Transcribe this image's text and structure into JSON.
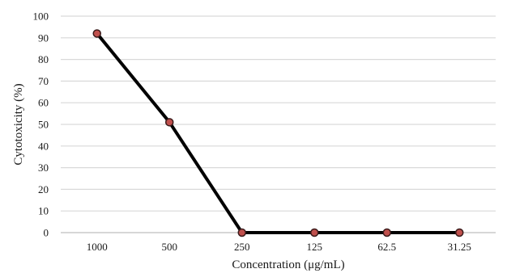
{
  "chart_data": {
    "type": "line",
    "title": "",
    "xlabel": "Concentration (μg/mL)",
    "ylabel": "Cytotoxicity (%)",
    "categories": [
      "1000",
      "500",
      "250",
      "125",
      "62.5",
      "31.25"
    ],
    "series": [
      {
        "values": [
          92,
          51,
          0,
          0,
          0,
          0
        ]
      }
    ],
    "ylim": [
      0,
      100
    ],
    "yticks": [
      0,
      10,
      20,
      30,
      40,
      50,
      60,
      70,
      80,
      90,
      100
    ],
    "grid": "horizontal",
    "legend": "none",
    "colors": {
      "line": "#000000",
      "marker_fill": "#c0504d",
      "marker_stroke": "#3a1a1a",
      "grid": "#d9d9d9",
      "baseline": "#bfbfbf"
    }
  }
}
